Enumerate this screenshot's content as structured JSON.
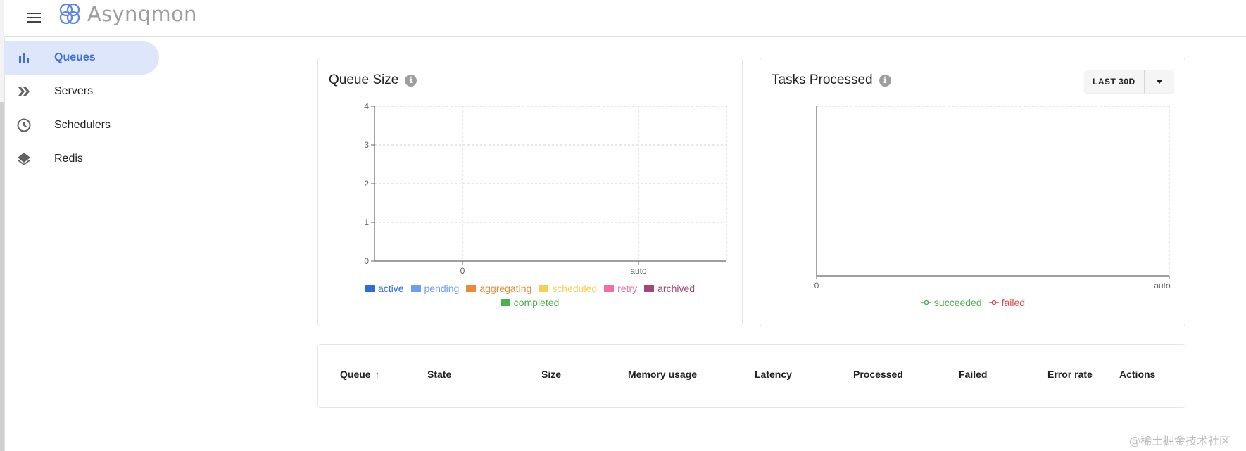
{
  "app": {
    "name": "Asynqmon"
  },
  "sidebar": {
    "items": [
      {
        "label": "Queues",
        "icon": "bar-chart-icon",
        "active": true
      },
      {
        "label": "Servers",
        "icon": "double-chevron-icon",
        "active": false
      },
      {
        "label": "Schedulers",
        "icon": "clock-icon",
        "active": false
      },
      {
        "label": "Redis",
        "icon": "layers-icon",
        "active": false
      }
    ]
  },
  "queue_size_card": {
    "title": "Queue Size",
    "legend": [
      {
        "label": "active",
        "color": "#2f6bd1"
      },
      {
        "label": "pending",
        "color": "#6f9ef0"
      },
      {
        "label": "aggregating",
        "color": "#e88a3a"
      },
      {
        "label": "scheduled",
        "color": "#f6cf55"
      },
      {
        "label": "retry",
        "color": "#ef6ea6"
      },
      {
        "label": "archived",
        "color": "#a34874"
      },
      {
        "label": "completed",
        "color": "#4caf50"
      }
    ]
  },
  "tasks_processed_card": {
    "title": "Tasks Processed",
    "range_button": "LAST 30D",
    "legend": [
      {
        "label": "succeeded",
        "color": "#4caf50"
      },
      {
        "label": "failed",
        "color": "#e0474c"
      }
    ]
  },
  "chart_data": [
    {
      "type": "bar",
      "title": "Queue Size",
      "categories": [],
      "x_ticks": [
        "0",
        "auto"
      ],
      "y_ticks": [
        "0",
        "1",
        "2",
        "3",
        "4"
      ],
      "ylim": [
        0,
        4
      ],
      "grid": true,
      "legend_placement": "bottom",
      "series": [
        {
          "name": "active",
          "values": []
        },
        {
          "name": "pending",
          "values": []
        },
        {
          "name": "aggregating",
          "values": []
        },
        {
          "name": "scheduled",
          "values": []
        },
        {
          "name": "retry",
          "values": []
        },
        {
          "name": "archived",
          "values": []
        },
        {
          "name": "completed",
          "values": []
        }
      ]
    },
    {
      "type": "line",
      "title": "Tasks Processed",
      "x_ticks": [
        "0",
        "auto"
      ],
      "grid": true,
      "legend_placement": "bottom",
      "series": [
        {
          "name": "succeeded",
          "values": []
        },
        {
          "name": "failed",
          "values": []
        }
      ]
    }
  ],
  "table": {
    "columns": [
      "Queue",
      "State",
      "Size",
      "Memory usage",
      "Latency",
      "Processed",
      "Failed",
      "Error rate",
      "Actions"
    ],
    "sort_indicator": "↑",
    "rows": []
  },
  "watermark": "@稀土掘金技术社区"
}
